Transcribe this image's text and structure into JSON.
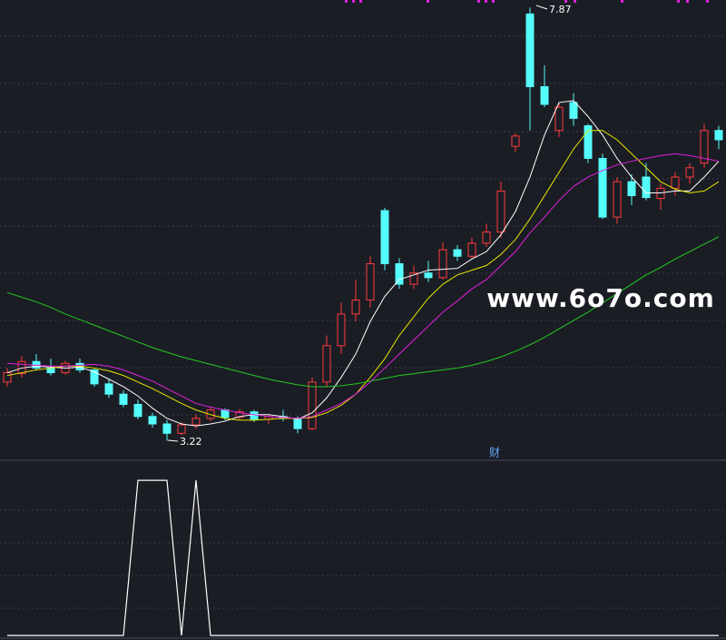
{
  "chart_data": [
    {
      "type": "candlestick",
      "open": [
        3.85,
        3.94,
        4.07,
        4.0,
        3.95,
        4.05,
        3.98,
        3.83,
        3.72,
        3.61,
        3.48,
        3.4,
        3.3,
        3.39,
        3.46,
        3.55,
        3.47,
        3.53,
        3.45,
        3.48,
        3.46,
        3.35,
        3.85,
        4.24,
        4.58,
        4.73,
        5.69,
        5.12,
        4.9,
        5.02,
        4.97,
        5.27,
        5.2,
        5.34,
        5.46,
        6.38,
        7.8,
        7.02,
        6.55,
        6.85,
        6.6,
        6.25,
        5.62,
        6.0,
        6.05,
        5.82,
        5.93,
        6.05,
        6.2,
        6.55
      ],
      "high": [
        4.0,
        4.13,
        4.15,
        4.1,
        4.08,
        4.1,
        4.0,
        3.88,
        3.76,
        3.66,
        3.52,
        3.44,
        3.42,
        3.5,
        3.58,
        3.57,
        3.56,
        3.55,
        3.5,
        3.55,
        3.48,
        3.9,
        4.35,
        4.7,
        4.95,
        5.2,
        5.72,
        5.18,
        5.1,
        5.15,
        5.35,
        5.32,
        5.4,
        5.55,
        6.0,
        6.52,
        7.87,
        7.25,
        6.85,
        6.95,
        6.62,
        6.3,
        6.05,
        6.08,
        6.2,
        5.98,
        6.1,
        6.2,
        6.62,
        6.6
      ],
      "low": [
        3.8,
        3.9,
        3.98,
        3.92,
        3.93,
        3.95,
        3.8,
        3.68,
        3.58,
        3.45,
        3.36,
        3.22,
        3.28,
        3.35,
        3.43,
        3.44,
        3.45,
        3.42,
        3.4,
        3.43,
        3.3,
        3.33,
        3.8,
        4.15,
        4.5,
        4.65,
        5.05,
        4.85,
        4.85,
        4.92,
        4.95,
        5.15,
        5.18,
        5.3,
        5.4,
        6.32,
        6.55,
        6.8,
        6.48,
        6.6,
        6.2,
        5.6,
        5.55,
        5.75,
        5.8,
        5.7,
        5.85,
        5.98,
        6.15,
        6.35
      ],
      "close": [
        3.95,
        4.07,
        4.0,
        3.95,
        4.05,
        3.98,
        3.83,
        3.72,
        3.61,
        3.48,
        3.4,
        3.3,
        3.39,
        3.46,
        3.55,
        3.47,
        3.53,
        3.45,
        3.48,
        3.46,
        3.35,
        3.85,
        4.24,
        4.58,
        4.73,
        5.12,
        5.12,
        4.9,
        5.02,
        4.97,
        5.27,
        5.2,
        5.34,
        5.46,
        5.9,
        6.49,
        7.02,
        6.83,
        6.8,
        6.68,
        6.25,
        5.62,
        6.0,
        5.85,
        5.83,
        5.93,
        6.05,
        6.15,
        6.55,
        6.45
      ],
      "up_color": "#ff3c3c",
      "down_color": "#54fcfc",
      "lines": [
        {
          "color": "#ffffff",
          "values": [
            3.95,
            4.0,
            4.02,
            4.01,
            4.0,
            4.01,
            3.96,
            3.88,
            3.8,
            3.7,
            3.57,
            3.46,
            3.4,
            3.38,
            3.4,
            3.43,
            3.48,
            3.5,
            3.5,
            3.48,
            3.45,
            3.52,
            3.68,
            3.9,
            4.15,
            4.5,
            4.77,
            4.95,
            5.0,
            5.05,
            5.06,
            5.07,
            5.17,
            5.25,
            5.43,
            5.68,
            6.05,
            6.5,
            6.85,
            6.87,
            6.7,
            6.5,
            6.25,
            6.05,
            5.88,
            5.88,
            5.9,
            5.9,
            6.05,
            6.22
          ]
        },
        {
          "color": "#e6e600",
          "values": [
            3.92,
            3.95,
            3.98,
            4.0,
            4.02,
            4.02,
            4.0,
            3.97,
            3.92,
            3.85,
            3.78,
            3.7,
            3.62,
            3.55,
            3.5,
            3.46,
            3.44,
            3.44,
            3.45,
            3.46,
            3.46,
            3.47,
            3.52,
            3.6,
            3.72,
            3.9,
            4.1,
            4.35,
            4.55,
            4.75,
            4.9,
            5.0,
            5.05,
            5.1,
            5.22,
            5.38,
            5.6,
            5.85,
            6.1,
            6.35,
            6.55,
            6.55,
            6.45,
            6.3,
            6.15,
            6.0,
            5.92,
            5.88,
            5.9,
            6.0
          ]
        },
        {
          "color": "#e020e0",
          "values": [
            4.05,
            4.04,
            4.03,
            4.02,
            4.02,
            4.03,
            4.04,
            4.02,
            3.98,
            3.92,
            3.86,
            3.78,
            3.7,
            3.62,
            3.58,
            3.55,
            3.52,
            3.5,
            3.48,
            3.47,
            3.46,
            3.48,
            3.55,
            3.62,
            3.72,
            3.85,
            4.0,
            4.15,
            4.3,
            4.45,
            4.6,
            4.72,
            4.85,
            4.95,
            5.1,
            5.25,
            5.45,
            5.62,
            5.8,
            5.95,
            6.05,
            6.12,
            6.18,
            6.22,
            6.25,
            6.28,
            6.3,
            6.28,
            6.25,
            6.22
          ]
        },
        {
          "color": "#22cc22",
          "values": [
            4.81,
            4.76,
            4.71,
            4.65,
            4.58,
            4.52,
            4.46,
            4.4,
            4.34,
            4.28,
            4.22,
            4.17,
            4.12,
            4.08,
            4.04,
            4.0,
            3.96,
            3.92,
            3.88,
            3.85,
            3.82,
            3.8,
            3.8,
            3.81,
            3.83,
            3.86,
            3.89,
            3.92,
            3.94,
            3.96,
            3.98,
            4.0,
            4.03,
            4.07,
            4.12,
            4.18,
            4.25,
            4.33,
            4.42,
            4.51,
            4.6,
            4.7,
            4.8,
            4.9,
            5.0,
            5.08,
            5.17,
            5.25,
            5.33,
            5.41
          ]
        }
      ],
      "ylim": [
        3.03,
        7.95
      ],
      "watermark": "www.6o7o.com",
      "marker_label": "财"
    },
    {
      "type": "line",
      "color": "#ffffff",
      "values": [
        0,
        0,
        0,
        0,
        0,
        0,
        0,
        0,
        0,
        1,
        1,
        1,
        0,
        1,
        0,
        0,
        0,
        0,
        0,
        0,
        0,
        0,
        0,
        0,
        0,
        0,
        0,
        0,
        0,
        0,
        0,
        0,
        0,
        0,
        0,
        0,
        0,
        0,
        0,
        0,
        0,
        0,
        0,
        0,
        0,
        0,
        0,
        0,
        0,
        0
      ],
      "ylim": [
        0,
        1.1
      ]
    }
  ]
}
